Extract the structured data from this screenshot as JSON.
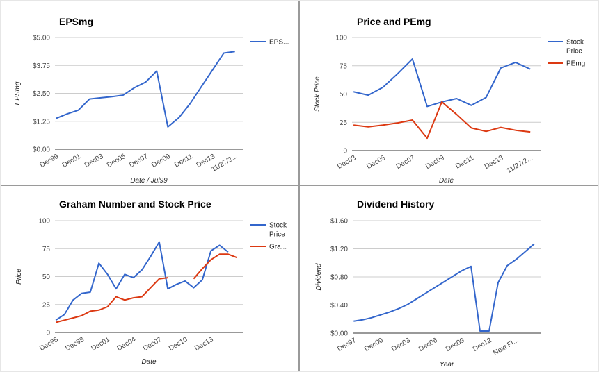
{
  "colors": {
    "blue": "#3366cc",
    "red": "#dc3912",
    "grid": "#cccccc",
    "axis": "#333333"
  },
  "chart_data": [
    {
      "type": "line",
      "title": "EPSmg",
      "xlabel": "Date / Jul99",
      "ylabel": "EPSmg",
      "tick_labels": [
        "Dec99",
        "Dec01",
        "Dec03",
        "Dec05",
        "Dec07",
        "Dec09",
        "Dec11",
        "Dec13",
        "11/27/2..."
      ],
      "y_ticks": [
        "$0.00",
        "$1.25",
        "$2.50",
        "$3.75",
        "$5.00"
      ],
      "ylim": [
        0,
        5
      ],
      "legend_position": "right",
      "series": [
        {
          "name": "EPS...",
          "color": "#3366cc",
          "values": [
            1.38,
            1.58,
            1.75,
            2.25,
            2.3,
            2.35,
            2.42,
            2.75,
            3.0,
            3.5,
            1.0,
            1.42,
            2.05,
            2.8,
            3.55,
            4.3,
            4.37
          ]
        }
      ]
    },
    {
      "type": "line",
      "title": "Price and PEmg",
      "xlabel": "Date",
      "ylabel": "Stock Price",
      "tick_labels": [
        "Dec03",
        "Dec05",
        "Dec07",
        "Dec09",
        "Dec11",
        "Dec13",
        "11/27/2..."
      ],
      "y_ticks": [
        "0",
        "25",
        "50",
        "75",
        "100"
      ],
      "ylim": [
        0,
        100
      ],
      "legend_position": "right",
      "series": [
        {
          "name": "Stock Price",
          "color": "#3366cc",
          "values": [
            52,
            49,
            56,
            68,
            81,
            39,
            43,
            46,
            40,
            47,
            73,
            78,
            72
          ]
        },
        {
          "name": "PEmg",
          "color": "#dc3912",
          "values": [
            22.5,
            21,
            22.5,
            24.5,
            27,
            11,
            43,
            32,
            20,
            17,
            20.5,
            18,
            16.5
          ]
        }
      ]
    },
    {
      "type": "line",
      "title": "Graham Number and Stock Price",
      "xlabel": "Date",
      "ylabel": "Price",
      "tick_labels": [
        "Dec95",
        "Dec98",
        "Dec01",
        "Dec04",
        "Dec07",
        "Dec10",
        "Dec13"
      ],
      "y_ticks": [
        "0",
        "25",
        "50",
        "75",
        "100"
      ],
      "ylim": [
        0,
        100
      ],
      "legend_position": "right",
      "series": [
        {
          "name": "Stock Price",
          "color": "#3366cc",
          "values": [
            11,
            16,
            29,
            35,
            36,
            62,
            52,
            39,
            52,
            49,
            56,
            68,
            81,
            39,
            43,
            46,
            40,
            47,
            73,
            78,
            72
          ]
        },
        {
          "name": "Gra...",
          "color": "#dc3912",
          "values": [
            9,
            11,
            13,
            15,
            19,
            20,
            23,
            32,
            29,
            31,
            32,
            40,
            48,
            49,
            null,
            null,
            48,
            57,
            65,
            70,
            70,
            67
          ]
        }
      ]
    },
    {
      "type": "line",
      "title": "Dividend History",
      "xlabel": "Year",
      "ylabel": "Dividend",
      "tick_labels": [
        "Dec97",
        "Dec00",
        "Dec03",
        "Dec06",
        "Dec09",
        "Dec12",
        "Next Fi..."
      ],
      "y_ticks": [
        "$0.00",
        "$0.40",
        "$0.80",
        "$1.20",
        "$1.60"
      ],
      "ylim": [
        0,
        1.6
      ],
      "legend_position": "none",
      "series": [
        {
          "name": "",
          "color": "#3366cc",
          "values": [
            0.17,
            0.19,
            0.22,
            0.26,
            0.3,
            0.35,
            0.41,
            0.49,
            0.57,
            0.65,
            0.73,
            0.81,
            0.89,
            0.95,
            0.03,
            0.03,
            0.72,
            0.96,
            1.05,
            1.16,
            1.27
          ]
        }
      ]
    }
  ]
}
